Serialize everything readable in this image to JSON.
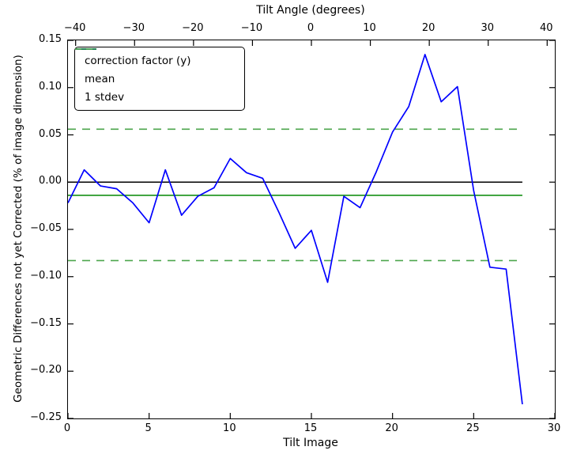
{
  "chart_data": {
    "type": "line",
    "top_axis": {
      "label": "Tilt Angle (degrees)",
      "ticks": [
        -40,
        -30,
        -20,
        -10,
        0,
        10,
        20,
        30,
        40
      ],
      "tick_labels": [
        "−40",
        "−30",
        "−20",
        "−10",
        "0",
        "10",
        "20",
        "30",
        "40"
      ],
      "range": [
        -41.3,
        41.3
      ]
    },
    "xlabel": "Tilt Image",
    "ylabel": "Geometric Differences not yet Corrected (% of image dimension)",
    "xlim": [
      0,
      30
    ],
    "ylim": [
      -0.25,
      0.15
    ],
    "x_ticks": [
      0,
      5,
      10,
      15,
      20,
      25,
      30
    ],
    "x_tick_labels": [
      "0",
      "5",
      "10",
      "15",
      "20",
      "25",
      "30"
    ],
    "y_ticks": [
      0.15,
      0.1,
      0.05,
      0.0,
      -0.05,
      -0.1,
      -0.15,
      -0.2,
      -0.25
    ],
    "y_tick_labels": [
      "0.15",
      "0.10",
      "0.05",
      "0.00",
      "−0.05",
      "−0.10",
      "−0.15",
      "−0.20",
      "−0.25"
    ],
    "grid": false,
    "legend_position": "upper-left",
    "legend": [
      {
        "label": "correction factor (y)",
        "color": "#0000ff",
        "style": "solid"
      },
      {
        "label": "mean",
        "color": "#169116",
        "style": "solid"
      },
      {
        "label": "1 stdev",
        "color": "#4ca64c",
        "style": "dashed"
      }
    ],
    "series": [
      {
        "name": "correction factor (y)",
        "color": "#0000ff",
        "style": "solid",
        "x": [
          0,
          1,
          2,
          3,
          4,
          5,
          6,
          7,
          8,
          9,
          10,
          11,
          12,
          13,
          14,
          15,
          16,
          17,
          18,
          19,
          20,
          21,
          22,
          23,
          24,
          25,
          26,
          27,
          28
        ],
        "y": [
          -0.022,
          0.013,
          -0.004,
          -0.007,
          -0.022,
          -0.043,
          0.013,
          -0.035,
          -0.015,
          -0.006,
          0.025,
          0.01,
          0.004,
          -0.032,
          -0.07,
          -0.051,
          -0.106,
          -0.015,
          -0.027,
          0.011,
          0.053,
          0.08,
          0.135,
          0.085,
          0.101,
          -0.009,
          -0.09,
          -0.092,
          -0.235
        ]
      },
      {
        "name": "mean",
        "color": "#169116",
        "style": "solid",
        "value": -0.014,
        "span": [
          0,
          28
        ]
      },
      {
        "name": "1 stdev",
        "color": "#4ca64c",
        "style": "dashed",
        "values": [
          0.056,
          -0.083
        ],
        "span": [
          0,
          28
        ]
      },
      {
        "name": "zero line",
        "color": "#000000",
        "style": "solid",
        "value": 0.0,
        "span": [
          0,
          28
        ]
      }
    ]
  }
}
